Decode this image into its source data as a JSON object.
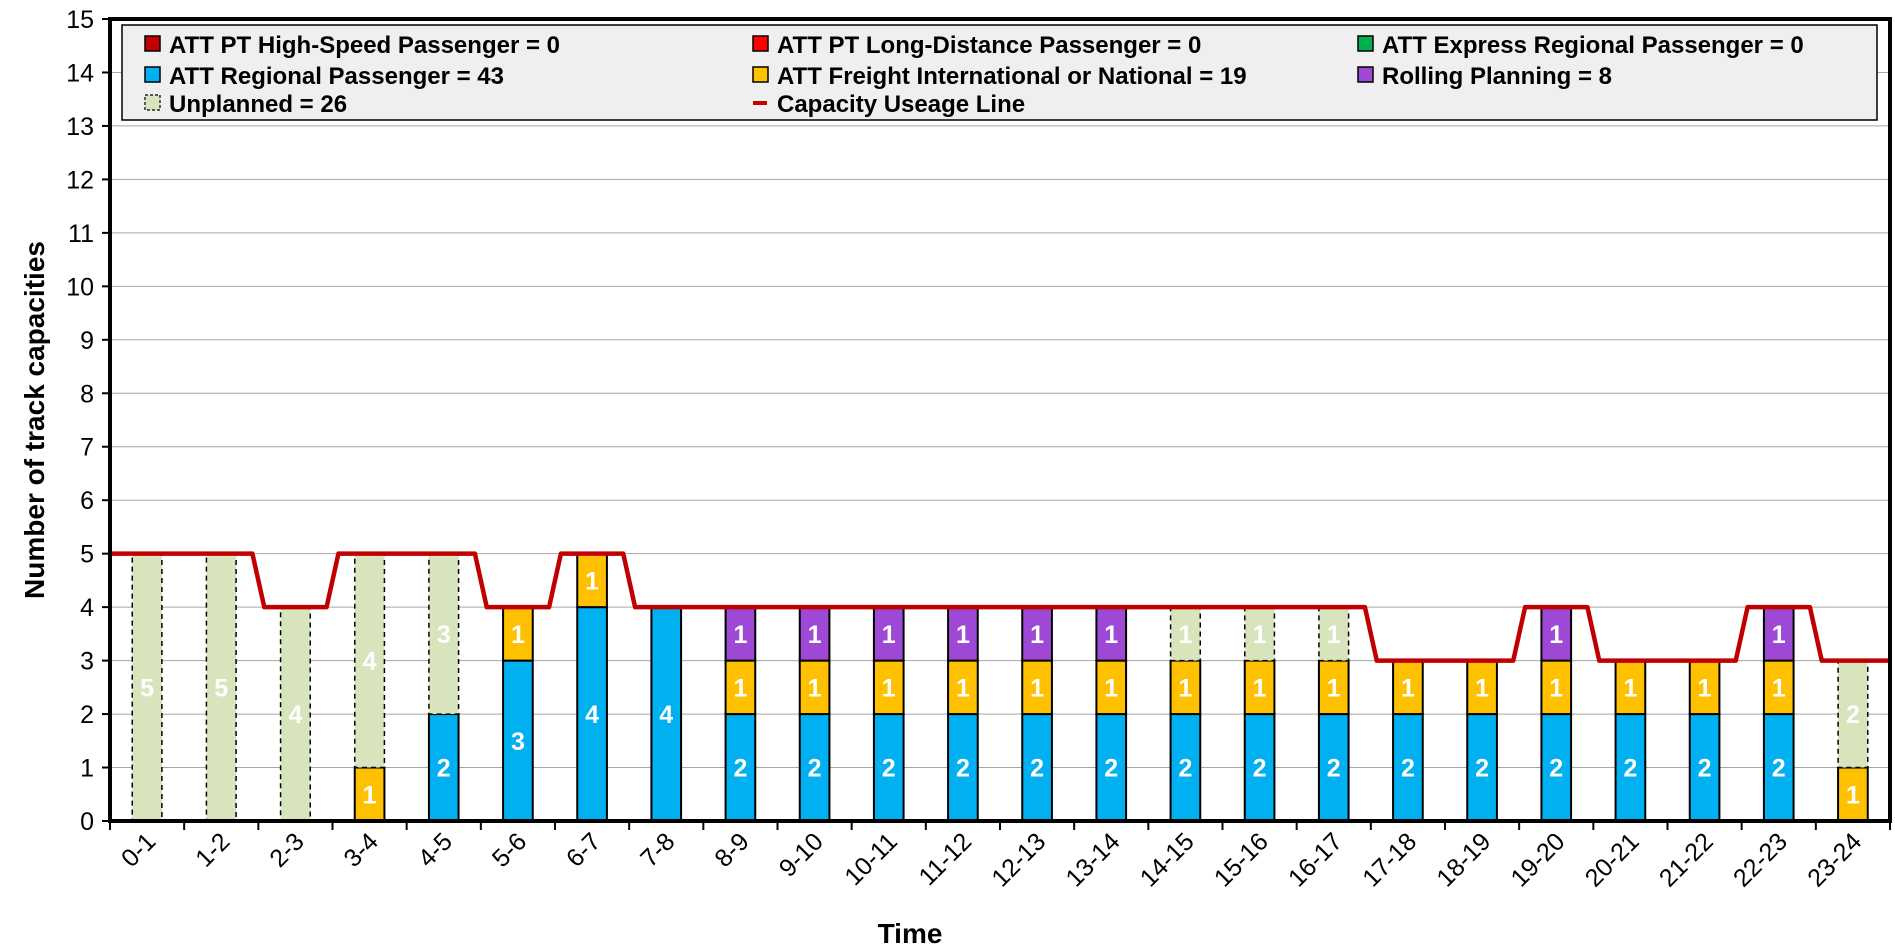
{
  "chart_data": {
    "type": "bar",
    "stacked": true,
    "xlabel": "Time",
    "ylabel": "Number of track capacities",
    "ylim": [
      0,
      15
    ],
    "yticks": [
      "0",
      "1",
      "2",
      "3",
      "4",
      "5",
      "6",
      "7",
      "8",
      "9",
      "10",
      "11",
      "12",
      "13",
      "14",
      "15"
    ],
    "grid": true,
    "legend_position": "top",
    "categories": [
      "0-1",
      "1-2",
      "2-3",
      "3-4",
      "4-5",
      "5-6",
      "6-7",
      "7-8",
      "8-9",
      "9-10",
      "10-11",
      "11-12",
      "12-13",
      "13-14",
      "14-15",
      "15-16",
      "16-17",
      "17-18",
      "18-19",
      "19-20",
      "20-21",
      "21-22",
      "22-23",
      "23-24"
    ],
    "legend": [
      {
        "key": "hs",
        "label": "ATT PT High-Speed Passenger = 0",
        "color": "#c00000",
        "kind": "box"
      },
      {
        "key": "ld",
        "label": "ATT PT Long-Distance Passenger = 0",
        "color": "#ff0000",
        "kind": "box"
      },
      {
        "key": "er",
        "label": "ATT Express Regional Passenger = 0",
        "color": "#00b050",
        "kind": "box"
      },
      {
        "key": "rp",
        "label": "ATT Regional Passenger = 43",
        "color": "#00b0f0",
        "kind": "box"
      },
      {
        "key": "fr",
        "label": "ATT Freight International or National = 19",
        "color": "#ffc000",
        "kind": "box"
      },
      {
        "key": "roll",
        "label": "Rolling Planning = 8",
        "color": "#9e49d6",
        "kind": "box"
      },
      {
        "key": "unp",
        "label": "Unplanned = 26",
        "color": "#d8e4bc",
        "kind": "dashed"
      },
      {
        "key": "cap",
        "label": "Capacity Useage Line",
        "color": "#c00000",
        "kind": "line"
      }
    ],
    "series": [
      {
        "name": "ATT PT High-Speed Passenger",
        "color": "#c00000",
        "values": [
          0,
          0,
          0,
          0,
          0,
          0,
          0,
          0,
          0,
          0,
          0,
          0,
          0,
          0,
          0,
          0,
          0,
          0,
          0,
          0,
          0,
          0,
          0,
          0
        ]
      },
      {
        "name": "ATT PT Long-Distance Passenger",
        "color": "#ff0000",
        "values": [
          0,
          0,
          0,
          0,
          0,
          0,
          0,
          0,
          0,
          0,
          0,
          0,
          0,
          0,
          0,
          0,
          0,
          0,
          0,
          0,
          0,
          0,
          0,
          0
        ]
      },
      {
        "name": "ATT Express Regional Passenger",
        "color": "#00b050",
        "values": [
          0,
          0,
          0,
          0,
          0,
          0,
          0,
          0,
          0,
          0,
          0,
          0,
          0,
          0,
          0,
          0,
          0,
          0,
          0,
          0,
          0,
          0,
          0,
          0
        ]
      },
      {
        "name": "ATT Regional Passenger",
        "color": "#00b0f0",
        "values": [
          0,
          0,
          0,
          0,
          2,
          3,
          4,
          4,
          2,
          2,
          2,
          2,
          2,
          2,
          2,
          2,
          2,
          2,
          2,
          2,
          2,
          2,
          2,
          0
        ]
      },
      {
        "name": "ATT Freight International or National",
        "color": "#ffc000",
        "values": [
          0,
          0,
          0,
          1,
          0,
          1,
          1,
          0,
          1,
          1,
          1,
          1,
          1,
          1,
          1,
          1,
          1,
          1,
          1,
          1,
          1,
          1,
          1,
          1
        ]
      },
      {
        "name": "Rolling Planning",
        "color": "#9e49d6",
        "values": [
          0,
          0,
          0,
          0,
          0,
          0,
          0,
          0,
          1,
          1,
          1,
          1,
          1,
          1,
          0,
          0,
          0,
          0,
          0,
          1,
          0,
          0,
          1,
          0
        ]
      },
      {
        "name": "Unplanned",
        "color": "#d8e4bc",
        "dashed": true,
        "values": [
          5,
          5,
          4,
          4,
          3,
          0,
          0,
          0,
          0,
          0,
          0,
          0,
          0,
          0,
          1,
          1,
          1,
          0,
          0,
          0,
          0,
          0,
          0,
          2
        ]
      }
    ],
    "capacity_line": {
      "name": "Capacity Useage Line",
      "color": "#c00000",
      "values": [
        5,
        5,
        4,
        5,
        5,
        4,
        5,
        4,
        4,
        4,
        4,
        4,
        4,
        4,
        4,
        4,
        4,
        3,
        3,
        4,
        3,
        3,
        4,
        3
      ]
    }
  }
}
